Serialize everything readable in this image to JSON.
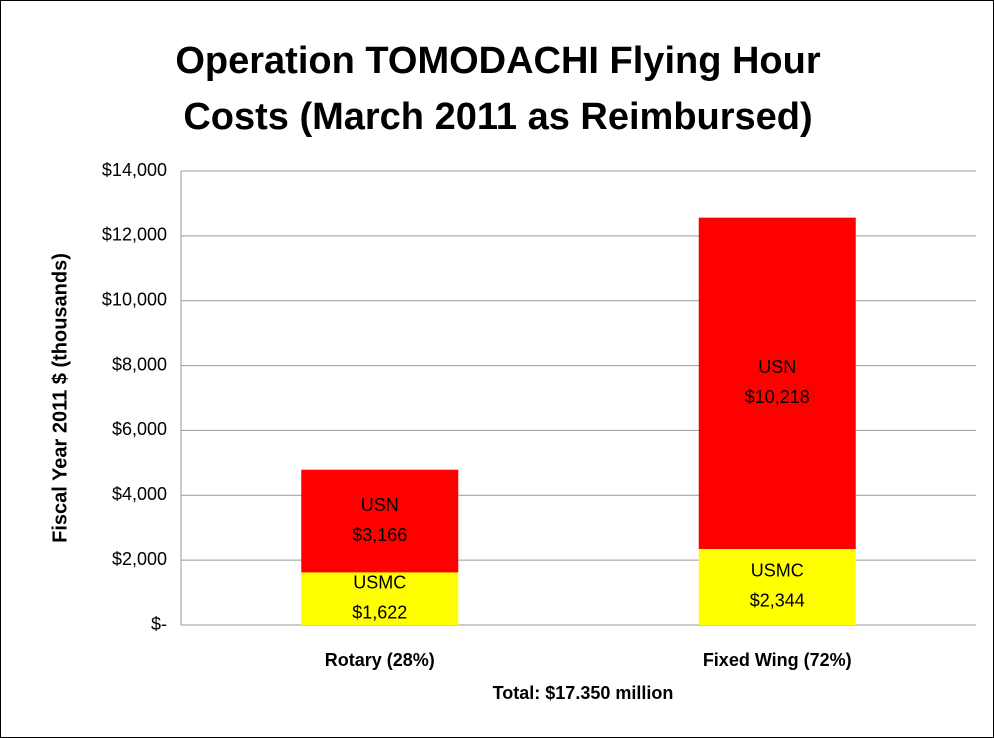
{
  "chart_data": {
    "type": "bar",
    "stacked": true,
    "title": "Operation TOMODACHI Flying Hour Costs (March 2011 as Reimbursed)",
    "y_label": "Fiscal Year 2011 $ (thousands)",
    "x_note": "Total:  $17.350 million",
    "categories": [
      "Rotary (28%)",
      "Fixed Wing (72%)"
    ],
    "series": [
      {
        "name": "USMC",
        "color": "#ffff00",
        "values": [
          1622,
          2344
        ],
        "value_labels": [
          "$1,622",
          "$2,344"
        ]
      },
      {
        "name": "USN",
        "color": "#ff0000",
        "values": [
          3166,
          10218
        ],
        "value_labels": [
          "$3,166",
          "$10,218"
        ]
      }
    ],
    "ylim": [
      0,
      14000
    ],
    "yticks": [
      {
        "value": 0,
        "label": "$-"
      },
      {
        "value": 2000,
        "label": "$2,000"
      },
      {
        "value": 4000,
        "label": "$4,000"
      },
      {
        "value": 6000,
        "label": "$6,000"
      },
      {
        "value": 8000,
        "label": "$8,000"
      },
      {
        "value": 10000,
        "label": "$10,000"
      },
      {
        "value": 12000,
        "label": "$12,000"
      },
      {
        "value": 14000,
        "label": "$14,000"
      }
    ],
    "grid": true
  }
}
